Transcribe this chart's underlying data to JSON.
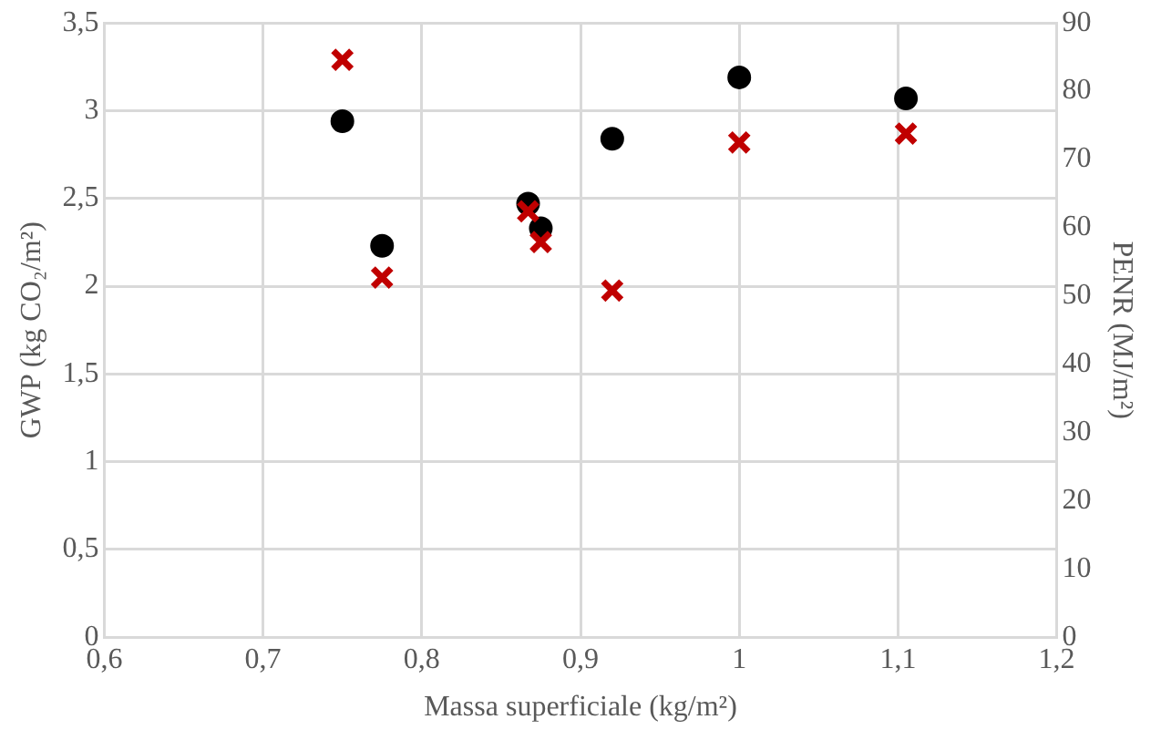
{
  "chart_data": {
    "type": "scatter",
    "xlabel": "Massa superficiale (kg/m²)",
    "ylabel": "GWP (kg CO₂/m²)",
    "y2label": "PENR (MJ/m²)",
    "xlim": [
      0.6,
      1.2
    ],
    "xticks": [
      {
        "value": 0.6,
        "label": "0,6"
      },
      {
        "value": 0.7,
        "label": "0,7"
      },
      {
        "value": 0.8,
        "label": "0,8"
      },
      {
        "value": 0.9,
        "label": "0,9"
      },
      1,
      {
        "value": 1.1,
        "label": "1,1"
      },
      {
        "value": 1.2,
        "label": "1,2"
      }
    ],
    "ylim": [
      0,
      3.5
    ],
    "yticks": [
      0,
      {
        "value": 0.5,
        "label": "0,5"
      },
      1,
      {
        "value": 1.5,
        "label": "1,5"
      },
      2,
      {
        "value": 2.5,
        "label": "2,5"
      },
      3,
      {
        "value": 3.5,
        "label": "3,5"
      }
    ],
    "y2lim": [
      0,
      90
    ],
    "y2ticks": [
      0,
      10,
      20,
      30,
      40,
      50,
      60,
      70,
      80,
      90
    ],
    "grid": true,
    "legend": false,
    "series": [
      {
        "color": "#000000",
        "marker": "circle",
        "x": [
          0.75,
          0.775,
          0.867,
          0.875,
          0.92,
          1.0,
          1.105
        ],
        "values": [
          2.94,
          2.23,
          2.47,
          2.33,
          2.84,
          3.19,
          3.07
        ]
      },
      {
        "color": "#c00000",
        "marker": "cross",
        "axis": "y2",
        "x": [
          0.75,
          0.775,
          0.867,
          0.875,
          0.92,
          1.0,
          1.105
        ],
        "values": [
          84.6,
          52.7,
          62.4,
          57.9,
          50.8,
          72.5,
          73.8
        ]
      }
    ]
  }
}
